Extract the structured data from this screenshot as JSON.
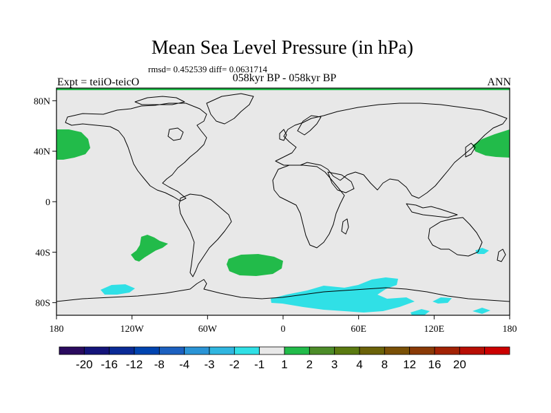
{
  "title": "Mean Sea Level Pressure (in hPa)",
  "stats": "rmsd= 0.452539 diff= 0.0631714",
  "expt": "Expt = teiiO-teicO",
  "period": "058kyr BP - 058kyr BP",
  "season": "ANN",
  "map": {
    "projection": "cylindrical equidistant",
    "lon_range": [
      -180,
      180
    ],
    "lat_range": [
      -90,
      90
    ],
    "x_ticks": [
      {
        "lon": -180,
        "label": "180"
      },
      {
        "lon": -120,
        "label": "120W"
      },
      {
        "lon": -60,
        "label": "60W"
      },
      {
        "lon": 0,
        "label": "0"
      },
      {
        "lon": 60,
        "label": "60E"
      },
      {
        "lon": 120,
        "label": "120E"
      },
      {
        "lon": 180,
        "label": "180"
      }
    ],
    "y_ticks": [
      {
        "lat": 80,
        "label": "80N"
      },
      {
        "lat": 40,
        "label": "40N"
      },
      {
        "lat": 0,
        "label": "0"
      },
      {
        "lat": -40,
        "label": "40S"
      },
      {
        "lat": -80,
        "label": "80S"
      }
    ],
    "background_color": "#e8e8e8",
    "coastline_color": "#000000"
  },
  "colorbar": {
    "colors": [
      "#2a0a5e",
      "#14147a",
      "#0a2a96",
      "#0044b0",
      "#1c60c0",
      "#2a94d6",
      "#30b6e0",
      "#30e0e6",
      "#e8e8e8",
      "#22bb4a",
      "#4c8c28",
      "#5a7a10",
      "#6b6208",
      "#7a5006",
      "#8a3a06",
      "#a22204",
      "#b80e04",
      "#cc0000"
    ],
    "labels": [
      "-20",
      "-16",
      "-12",
      "-8",
      "-4",
      "-3",
      "-2",
      "-1",
      "1",
      "2",
      "3",
      "4",
      "8",
      "12",
      "16",
      "20"
    ]
  }
}
